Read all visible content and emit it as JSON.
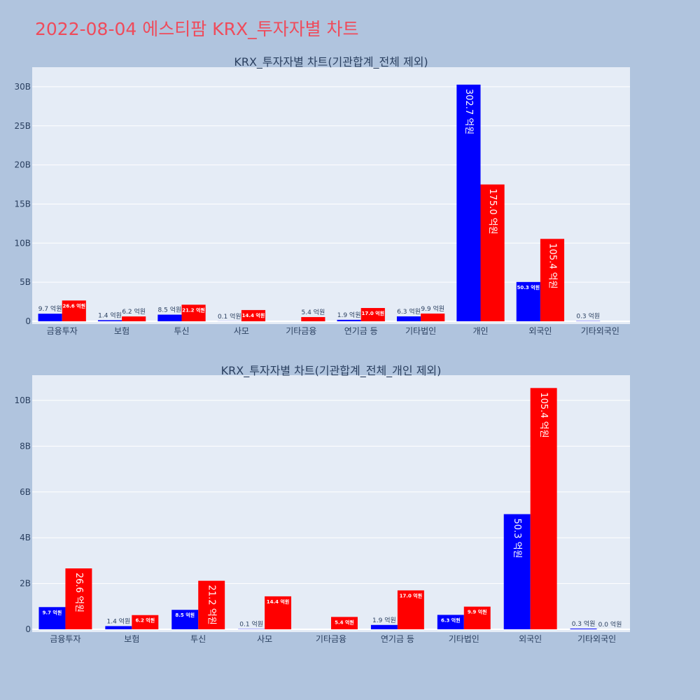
{
  "title": "2022-08-04 에스티팜 KRX_투자자별 차트",
  "colors": {
    "sell": "#0000ff",
    "buy": "#ff0000",
    "plot_bg": "#e5ecf6",
    "page_bg": "#b0c4de"
  },
  "chart_data": [
    {
      "type": "bar",
      "title": "KRX_투자자별 차트(기관합계_전체 제외)",
      "categories": [
        "금융투자",
        "보험",
        "투신",
        "사모",
        "기타금융",
        "연기금 등",
        "기타법인",
        "개인",
        "외국인",
        "기타외국인"
      ],
      "ylim": [
        0,
        32.5
      ],
      "yticks": [
        0,
        5,
        10,
        15,
        20,
        25,
        30
      ],
      "ytick_labels": [
        "0",
        "5B",
        "10B",
        "15B",
        "20B",
        "25B",
        "30B"
      ],
      "series": [
        {
          "values": [
            0.97,
            0.14,
            0.85,
            0.01,
            0,
            0.19,
            0.63,
            30.27,
            5.03,
            0.03
          ],
          "labels": [
            "9.7 억원",
            "1.4 억원",
            "8.5 억원",
            "0.1 억원",
            "",
            "1.9 억원",
            "6.3 억원",
            "302.7 억원",
            "50.3 억원",
            "0.3 억원"
          ]
        },
        {
          "values": [
            2.66,
            0.62,
            2.12,
            1.44,
            0.54,
            1.7,
            0.99,
            17.5,
            10.54,
            0
          ],
          "labels": [
            "26.6 억원",
            "6.2 억원",
            "21.2 억원",
            "14.4 억원",
            "5.4 억원",
            "17.0 억원",
            "9.9 억원",
            "175.0 억원",
            "105.4 억원",
            ""
          ]
        }
      ]
    },
    {
      "type": "bar",
      "title": "KRX_투자자별 차트(기관합계_전체_개인 제외)",
      "categories": [
        "금융투자",
        "보험",
        "투신",
        "사모",
        "기타금융",
        "연기금 등",
        "기타법인",
        "외국인",
        "기타외국인"
      ],
      "ylim": [
        0,
        11.1
      ],
      "yticks": [
        0,
        2,
        4,
        6,
        8,
        10
      ],
      "ytick_labels": [
        "0",
        "2B",
        "4B",
        "6B",
        "8B",
        "10B"
      ],
      "series": [
        {
          "values": [
            0.97,
            0.14,
            0.85,
            0.01,
            0,
            0.19,
            0.63,
            5.03,
            0.03
          ],
          "labels": [
            "9.7 억원",
            "1.4 억원",
            "8.5 억원",
            "0.1 억원",
            "",
            "1.9 억원",
            "6.3 억원",
            "50.3 억원",
            "0.3 억원"
          ]
        },
        {
          "values": [
            2.66,
            0.62,
            2.12,
            1.44,
            0.54,
            1.7,
            0.99,
            10.54,
            0
          ],
          "labels": [
            "26.6 억원",
            "6.2 억원",
            "21.2 억원",
            "14.4 억원",
            "5.4 억원",
            "17.0 억원",
            "9.9 억원",
            "105.4 억원",
            "0.0 억원"
          ]
        }
      ]
    }
  ]
}
